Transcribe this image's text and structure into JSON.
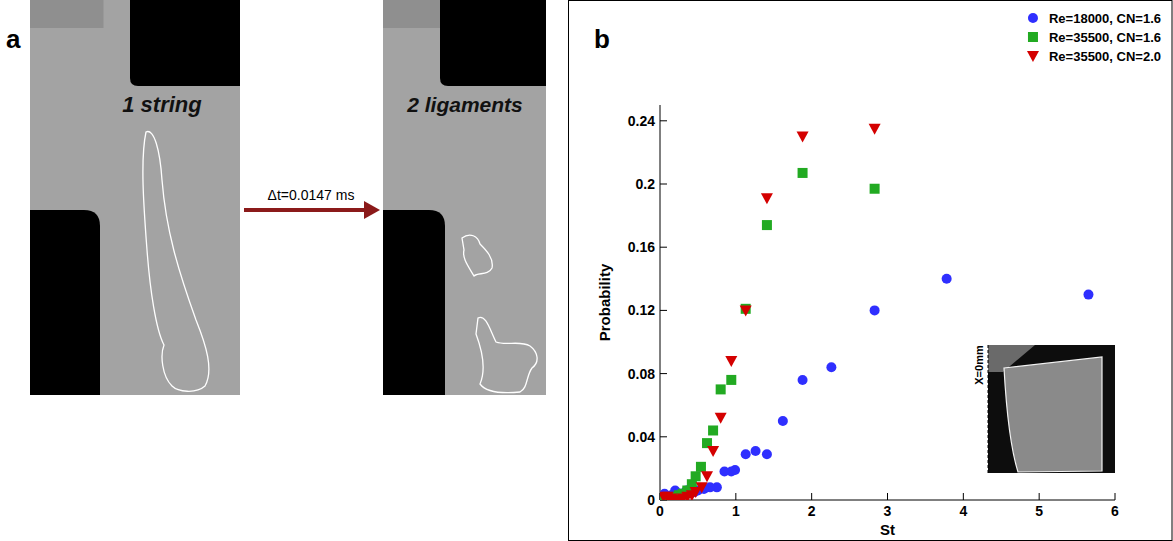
{
  "panel_a": {
    "letter": "a",
    "left_image_label": "1 string",
    "right_image_label": "2 ligaments",
    "arrow_label": "Δt=0.0147 ms"
  },
  "panel_b": {
    "letter": "b"
  },
  "chart_data": {
    "type": "scatter",
    "x_label": "St",
    "y_label": "Probability",
    "xlim": [
      0,
      6
    ],
    "xticks": [
      0,
      1,
      2,
      3,
      4,
      5,
      6
    ],
    "ylim": [
      0,
      0.25
    ],
    "yticks": [
      0,
      0.04,
      0.08,
      0.12,
      0.16,
      0.2,
      0.24
    ],
    "legend": "top-right",
    "grid": false,
    "annotations": [
      "X=0mm"
    ],
    "series": [
      {
        "name": "Re=18000, CN=1.6",
        "color": "#2f2fff",
        "marker": "circle",
        "x": [
          5.65,
          3.78,
          2.83,
          2.26,
          1.88,
          1.62,
          1.41,
          1.26,
          1.13,
          0.99,
          0.94,
          0.85,
          0.75,
          0.66,
          0.58,
          0.5,
          0.45,
          0.4,
          0.35,
          0.28,
          0.2,
          0.15,
          0.1,
          0.06,
          0.03
        ],
        "values": [
          0.13,
          0.14,
          0.12,
          0.084,
          0.076,
          0.05,
          0.029,
          0.031,
          0.029,
          0.019,
          0.018,
          0.018,
          0.008,
          0.008,
          0.007,
          0.006,
          0.005,
          0.007,
          0.006,
          0.004,
          0.006,
          0.003,
          0.002,
          0.004,
          0.001
        ]
      },
      {
        "name": "Re=35500, CN=1.6",
        "color": "#22aa22",
        "marker": "square",
        "x": [
          2.83,
          1.88,
          1.41,
          1.13,
          0.94,
          0.8,
          0.7,
          0.62,
          0.54,
          0.47,
          0.42,
          0.36,
          0.3,
          0.25,
          0.2,
          0.15,
          0.1,
          0.05
        ],
        "values": [
          0.197,
          0.207,
          0.174,
          0.121,
          0.076,
          0.07,
          0.044,
          0.036,
          0.021,
          0.015,
          0.01,
          0.006,
          0.004,
          0.003,
          0.002,
          0.001,
          0.001,
          0.0
        ]
      },
      {
        "name": "Re=35500, CN=2.0",
        "color": "#d40000",
        "marker": "triangle-down",
        "x": [
          2.83,
          1.88,
          1.41,
          1.13,
          0.94,
          0.8,
          0.7,
          0.62,
          0.55,
          0.47,
          0.42,
          0.36,
          0.3,
          0.25,
          0.2,
          0.15,
          0.1,
          0.05
        ],
        "values": [
          0.235,
          0.23,
          0.191,
          0.12,
          0.088,
          0.052,
          0.031,
          0.015,
          0.008,
          0.005,
          0.003,
          0.002,
          0.001,
          0.0,
          0.0,
          0.001,
          0.002,
          0.002
        ]
      }
    ]
  }
}
